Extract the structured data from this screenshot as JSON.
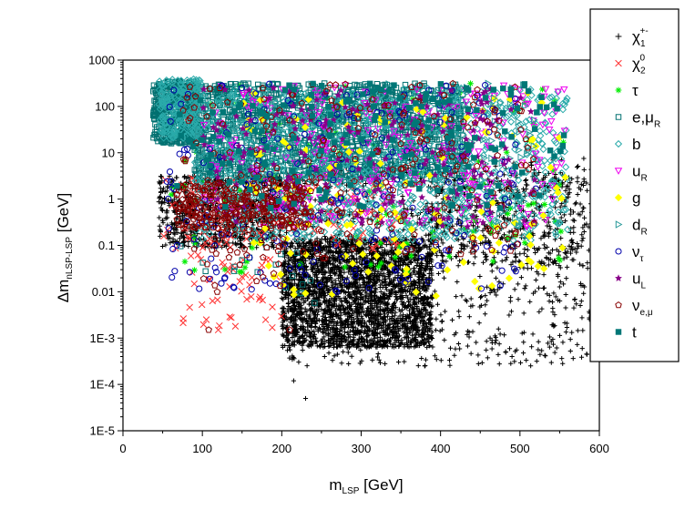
{
  "chart_data": {
    "type": "scatter",
    "title": "",
    "xlabel": {
      "main": "m",
      "sub": "LSP",
      "unit": " [GeV]"
    },
    "ylabel": {
      "main": "Δm",
      "sub": "nLSP-LSP",
      "unit": " [GeV]"
    },
    "xlim": [
      0,
      600
    ],
    "ylim": [
      1e-05,
      1000
    ],
    "yscale": "log",
    "xticks": [
      "0",
      "100",
      "200",
      "300",
      "400",
      "500",
      "600"
    ],
    "yticks": [
      "1E-5",
      "1E-4",
      "1E-3",
      "0.01",
      "0.1",
      "1",
      "10",
      "100",
      "1000"
    ],
    "grid": false,
    "legend_position": "right, outside",
    "series": [
      {
        "name": "χ1±",
        "label": {
          "main": "χ",
          "sub": "1",
          "sup": "+-"
        },
        "color": "#000000",
        "marker": "plus",
        "regions": [
          {
            "xmin": 200,
            "xmax": 390,
            "ylog_min": -3.2,
            "ylog_max": -0.85,
            "n": 2600
          },
          {
            "xmin": 200,
            "xmax": 600,
            "ylog_min": -3.6,
            "ylog_max": 0.9,
            "n": 900
          },
          {
            "xmin": 45,
            "xmax": 200,
            "ylog_min": -1.05,
            "ylog_max": 0.5,
            "n": 750
          },
          {
            "xmin": 380,
            "xmax": 600,
            "ylog_min": -1.5,
            "ylog_max": 0.6,
            "n": 400
          }
        ],
        "points": [
          [
            230,
            5e-05
          ],
          [
            215,
            0.00012
          ],
          [
            380,
            0.00025
          ],
          [
            330,
            0.00028
          ],
          [
            490,
            0.0004
          ],
          [
            600,
            0.07
          ]
        ]
      },
      {
        "name": "χ2⁰",
        "label": {
          "main": "χ",
          "sub": "2",
          "sup": "0"
        },
        "color": "#ff3333",
        "marker": "x",
        "regions": [
          {
            "xmin": 75,
            "xmax": 200,
            "ylog_min": -2.8,
            "ylog_max": -1.2,
            "n": 45
          },
          {
            "xmin": 45,
            "xmax": 350,
            "ylog_min": -1.1,
            "ylog_max": 0.6,
            "n": 120
          }
        ],
        "points": [
          [
            120,
            0.0015
          ],
          [
            105,
            0.0025
          ],
          [
            98,
            0.05
          ]
        ]
      },
      {
        "name": "τ",
        "label": {
          "main": "τ",
          "sub": "",
          "sup": ""
        },
        "color": "#00ee00",
        "marker": "asterisk",
        "regions": [
          {
            "xmin": 60,
            "xmax": 560,
            "ylog_min": -1.6,
            "ylog_max": 2.5,
            "n": 130
          }
        ]
      },
      {
        "name": "e,μR",
        "label": {
          "main": "e,μ",
          "sub": "R",
          "sup": ""
        },
        "color": "#007070",
        "marker": "square",
        "regions": [
          {
            "xmin": 90,
            "xmax": 430,
            "ylog_min": 0.4,
            "ylog_max": 2.5,
            "n": 1600
          },
          {
            "xmin": 38,
            "xmax": 95,
            "ylog_min": 1.2,
            "ylog_max": 2.55,
            "n": 400
          },
          {
            "xmin": 70,
            "xmax": 260,
            "ylog_min": -2.3,
            "ylog_max": -0.9,
            "n": 20
          }
        ]
      },
      {
        "name": "b",
        "label": {
          "main": "b",
          "sub": "",
          "sup": ""
        },
        "color": "#2aaaaa",
        "marker": "diamond",
        "regions": [
          {
            "xmin": 90,
            "xmax": 560,
            "ylog_min": -0.9,
            "ylog_max": 2.4,
            "n": 1000
          },
          {
            "xmin": 45,
            "xmax": 100,
            "ylog_min": 1.3,
            "ylog_max": 2.6,
            "n": 200
          }
        ]
      },
      {
        "name": "uR",
        "label": {
          "main": "u",
          "sub": "R",
          "sup": ""
        },
        "color": "#ee00ee",
        "marker": "triangle-down",
        "regions": [
          {
            "xmin": 100,
            "xmax": 560,
            "ylog_min": -0.6,
            "ylog_max": 2.5,
            "n": 280
          }
        ]
      },
      {
        "name": "g",
        "label": {
          "main": "g",
          "sub": "",
          "sup": ""
        },
        "color": "#ffff00",
        "marker": "diamond-filled",
        "regions": [
          {
            "xmin": 150,
            "xmax": 560,
            "ylog_min": -2.1,
            "ylog_max": 2.3,
            "n": 140
          }
        ]
      },
      {
        "name": "dR",
        "label": {
          "main": "d",
          "sub": "R",
          "sup": ""
        },
        "color": "#2a9a9a",
        "marker": "triangle-right",
        "regions": [
          {
            "xmin": 90,
            "xmax": 520,
            "ylog_min": -0.6,
            "ylog_max": 2.5,
            "n": 250
          }
        ]
      },
      {
        "name": "ντ",
        "label": {
          "main": "ν",
          "sub": "τ",
          "sup": ""
        },
        "color": "#0000aa",
        "marker": "circle",
        "regions": [
          {
            "xmin": 50,
            "xmax": 520,
            "ylog_min": -2.0,
            "ylog_max": 2.5,
            "n": 240
          }
        ]
      },
      {
        "name": "uL",
        "label": {
          "main": "u",
          "sub": "L",
          "sup": ""
        },
        "color": "#880088",
        "marker": "star",
        "regions": [
          {
            "xmin": 100,
            "xmax": 520,
            "ylog_min": -0.6,
            "ylog_max": 2.4,
            "n": 220
          }
        ]
      },
      {
        "name": "νe,μ",
        "label": {
          "main": "ν",
          "sub": "e,μ",
          "sup": ""
        },
        "color": "#880000",
        "marker": "pentagon",
        "regions": [
          {
            "xmin": 75,
            "xmax": 520,
            "ylog_min": -1.3,
            "ylog_max": 2.5,
            "n": 260
          },
          {
            "xmin": 65,
            "xmax": 240,
            "ylog_min": -0.65,
            "ylog_max": 0.35,
            "n": 260
          },
          {
            "xmin": 100,
            "xmax": 200,
            "ylog_min": -2.3,
            "ylog_max": -1.0,
            "n": 12
          }
        ],
        "points": [
          [
            108,
            0.0015
          ],
          [
            210,
            0.0015
          ]
        ]
      },
      {
        "name": "t",
        "label": {
          "main": "t",
          "sub": "",
          "sup": ""
        },
        "color": "#007777",
        "marker": "square-filled",
        "regions": [
          {
            "xmin": 60,
            "xmax": 560,
            "ylog_min": -0.2,
            "ylog_max": 2.5,
            "n": 170
          }
        ]
      }
    ]
  }
}
